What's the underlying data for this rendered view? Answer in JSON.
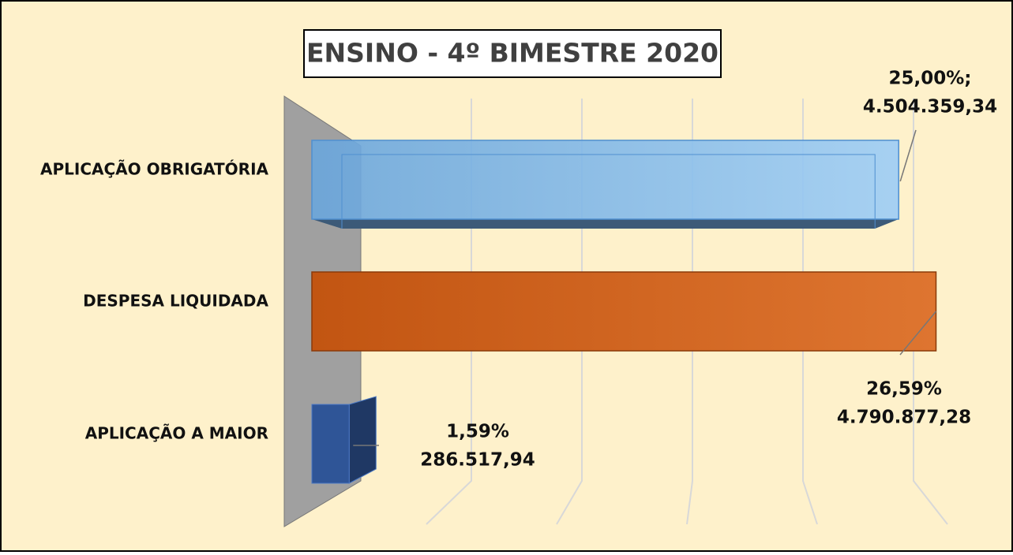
{
  "chart_data": {
    "type": "bar3d",
    "title": "ENSINO - 4º BIMESTRE 2020",
    "categories": [
      "APLICAÇÃO OBRIGATÓRIA",
      "DESPESA LIQUIDADA",
      "APLICAÇÃO A MAIOR"
    ],
    "values": [
      4504359.34,
      4790877.28,
      286517.94
    ],
    "value_labels": [
      "4.504.359,34",
      "4.790.877,28",
      "286.517,94"
    ],
    "percent_labels": [
      "25,00%;",
      "26,59%",
      "1,59%"
    ],
    "colors": [
      "#74b4ec",
      "#d2601a",
      "#2f5597"
    ],
    "xlim": [
      0,
      5000000
    ],
    "xticks": [
      0,
      1000000,
      2000000,
      3000000,
      4000000,
      5000000
    ],
    "grid": true
  }
}
